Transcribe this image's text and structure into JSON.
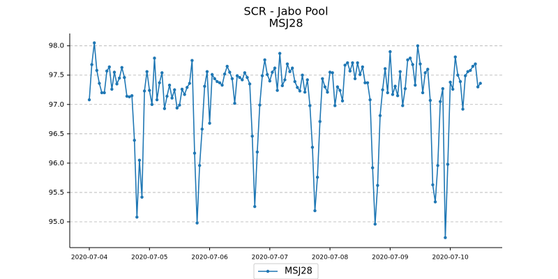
{
  "chart_data": {
    "type": "line",
    "title": "SCR - Jabo Pool",
    "subtitle": "MSJ28",
    "x": [
      0,
      1,
      2,
      3,
      4,
      5,
      6,
      7,
      8,
      9,
      10,
      11,
      12,
      13,
      14,
      15,
      16,
      17,
      18,
      19,
      20,
      21,
      22,
      23,
      24,
      25,
      26,
      27,
      28,
      29,
      30,
      31,
      32,
      33,
      34,
      35,
      36,
      37,
      38,
      39,
      40,
      41,
      42,
      43,
      44,
      45,
      46,
      47,
      48,
      49,
      50,
      51,
      52,
      53,
      54,
      55,
      56,
      57,
      58,
      59,
      60,
      61,
      62,
      63,
      64,
      65,
      66,
      67,
      68,
      69,
      70,
      71,
      72,
      73,
      74,
      75,
      76,
      77,
      78,
      79,
      80,
      81,
      82,
      83,
      84,
      85,
      86,
      87,
      88,
      89,
      90,
      91,
      92,
      93,
      94,
      95,
      96,
      97,
      98,
      99,
      100,
      101,
      102,
      103,
      104,
      105,
      106,
      107,
      108,
      109,
      110,
      111,
      112,
      113,
      114,
      115,
      116,
      117,
      118,
      119,
      120,
      121,
      122,
      123,
      124,
      125,
      126,
      127,
      128,
      129,
      130,
      131,
      132,
      133,
      134,
      135,
      136,
      137,
      138,
      139,
      140,
      141,
      142,
      143,
      144,
      145,
      146,
      147,
      148,
      149,
      150,
      151,
      152,
      153,
      154,
      155,
      156
    ],
    "series": [
      {
        "name": "MSJ28",
        "color": "#1f77b4",
        "values": [
          97.08,
          97.68,
          98.05,
          97.58,
          97.36,
          97.2,
          97.2,
          97.57,
          97.64,
          97.26,
          97.55,
          97.35,
          97.45,
          97.63,
          97.46,
          97.14,
          97.13,
          97.15,
          96.39,
          95.08,
          96.05,
          95.42,
          97.23,
          97.56,
          97.24,
          97.0,
          97.79,
          97.08,
          97.37,
          97.54,
          96.93,
          97.14,
          97.33,
          97.11,
          97.25,
          96.94,
          96.99,
          97.26,
          97.17,
          97.29,
          97.36,
          97.75,
          96.17,
          94.98,
          95.96,
          96.58,
          97.31,
          97.56,
          96.68,
          97.51,
          97.44,
          97.39,
          97.37,
          97.33,
          97.52,
          97.65,
          97.55,
          97.44,
          97.02,
          97.49,
          97.46,
          97.42,
          97.54,
          97.46,
          97.35,
          96.46,
          95.26,
          96.19,
          96.99,
          97.49,
          97.76,
          97.51,
          97.4,
          97.55,
          97.62,
          97.24,
          97.87,
          97.32,
          97.42,
          97.69,
          97.56,
          97.62,
          97.39,
          97.29,
          97.23,
          97.5,
          97.21,
          97.42,
          96.98,
          96.27,
          95.19,
          95.76,
          96.71,
          97.44,
          97.3,
          97.21,
          97.55,
          97.54,
          96.98,
          97.3,
          97.24,
          97.06,
          97.67,
          97.71,
          97.57,
          97.71,
          97.44,
          97.71,
          97.51,
          97.64,
          97.37,
          97.37,
          97.08,
          95.92,
          94.96,
          95.62,
          96.81,
          97.25,
          97.61,
          97.2,
          97.9,
          97.17,
          97.31,
          97.15,
          97.56,
          96.98,
          97.27,
          97.76,
          97.79,
          97.68,
          97.33,
          98.0,
          97.69,
          97.2,
          97.54,
          97.6,
          97.07,
          95.63,
          95.34,
          95.96,
          97.05,
          97.27,
          94.73,
          95.98,
          97.38,
          97.26,
          97.81,
          97.5,
          97.39,
          96.92,
          97.49,
          97.56,
          97.58,
          97.65,
          97.69,
          97.3,
          97.36
        ]
      }
    ],
    "xlim": [
      -7.8,
      164.7
    ],
    "xticks": [
      {
        "value": 0,
        "label": "2020-07-04"
      },
      {
        "value": 24,
        "label": "2020-07-05"
      },
      {
        "value": 48,
        "label": "2020-07-06"
      },
      {
        "value": 72,
        "label": "2020-07-07"
      },
      {
        "value": 96,
        "label": "2020-07-08"
      },
      {
        "value": 120,
        "label": "2020-07-09"
      },
      {
        "value": 144,
        "label": "2020-07-10"
      }
    ],
    "ylim": [
      94.56,
      98.21
    ],
    "yticks": [
      {
        "value": 95,
        "label": "95.0"
      },
      {
        "value": 95.5,
        "label": "95.5"
      },
      {
        "value": 96,
        "label": "96.0"
      },
      {
        "value": 96.5,
        "label": "96.5"
      },
      {
        "value": 97,
        "label": "97.0"
      },
      {
        "value": 97.5,
        "label": "97.5"
      },
      {
        "value": 98,
        "label": "98.0"
      }
    ],
    "grid": true
  }
}
